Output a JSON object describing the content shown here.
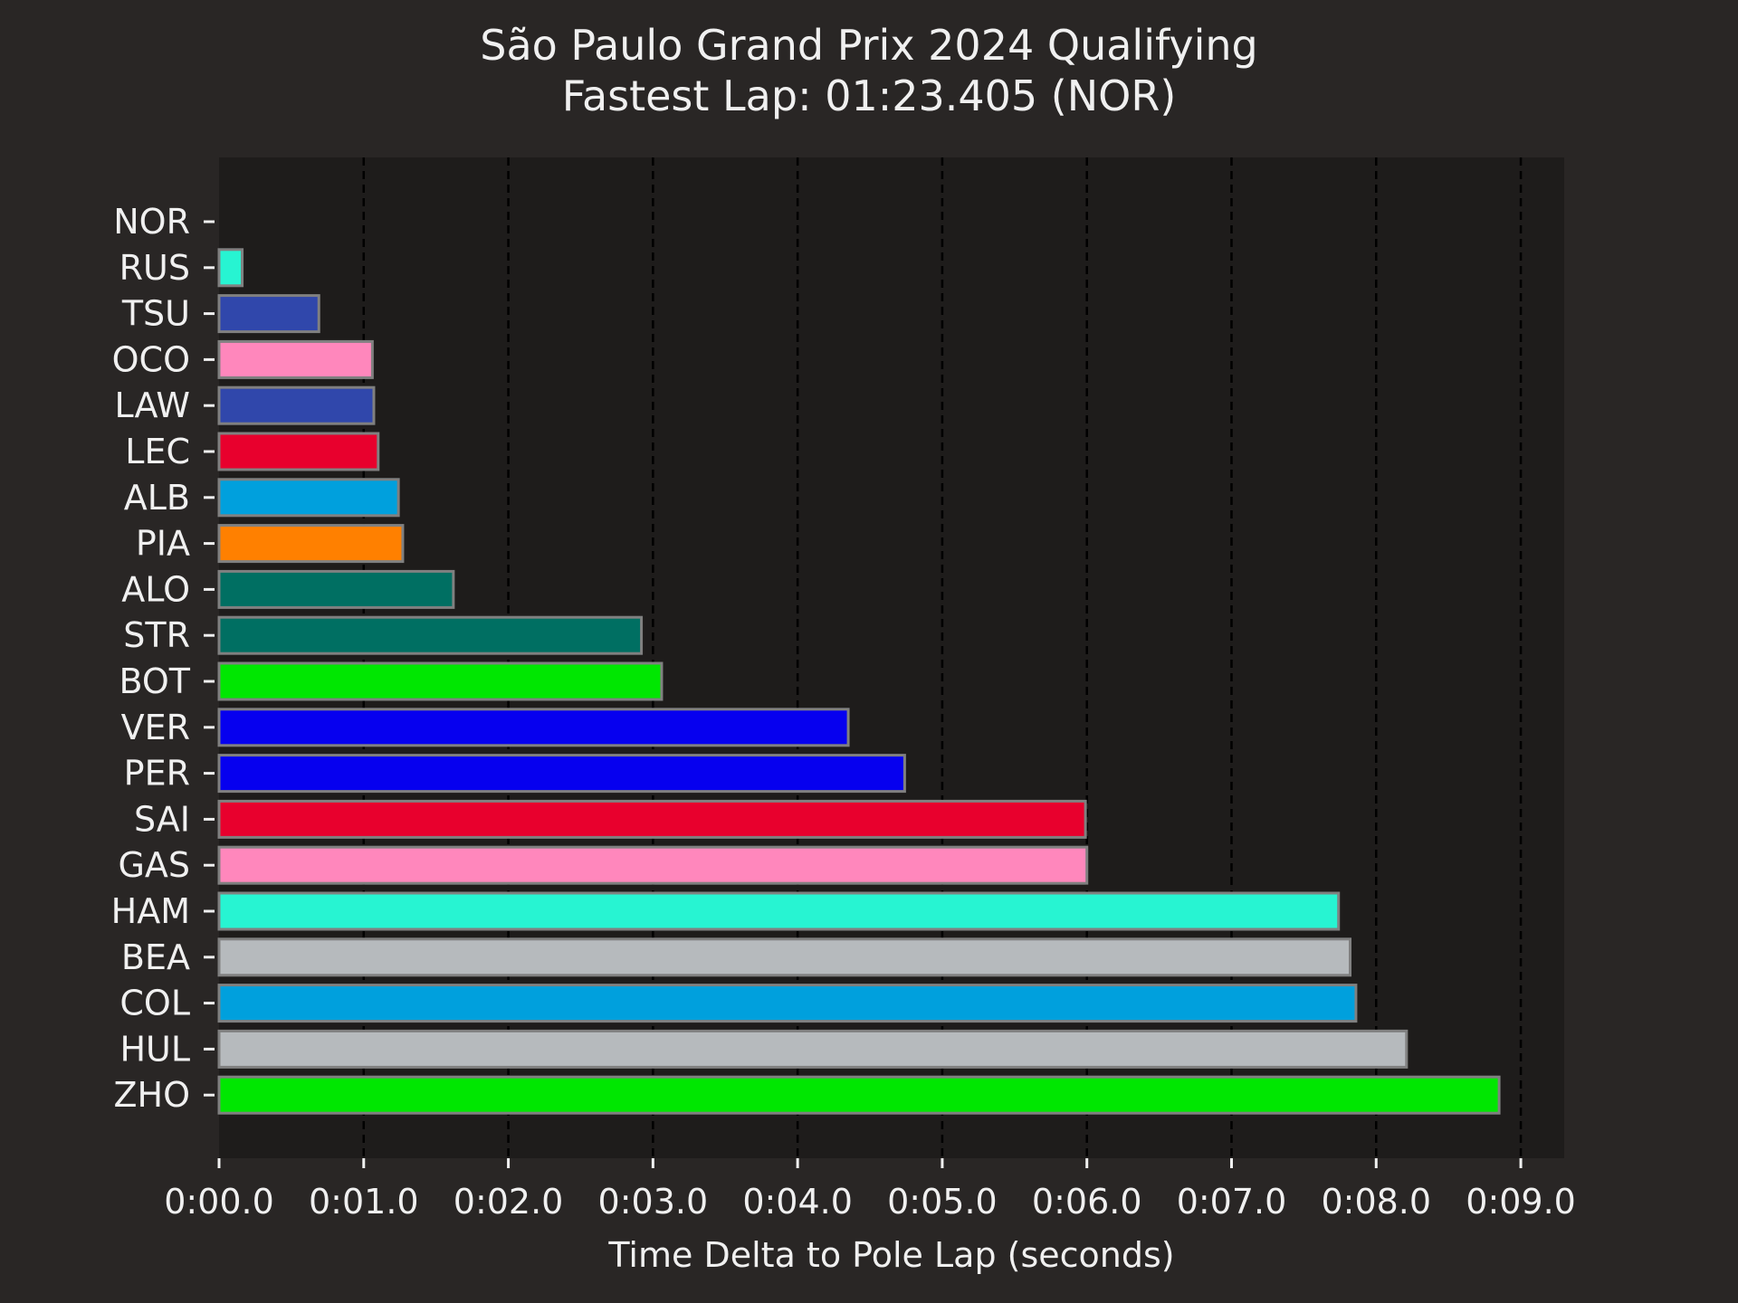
{
  "chart_data": {
    "type": "bar",
    "orientation": "horizontal",
    "title": "São Paulo Grand Prix 2024 Qualifying",
    "subtitle": "Fastest Lap: 01:23.405 (NOR)",
    "xlabel": "Time Delta to Pole Lap (seconds)",
    "ylabel": "",
    "xlim": [
      0,
      9.3
    ],
    "xticks": [
      0,
      1,
      2,
      3,
      4,
      5,
      6,
      7,
      8,
      9
    ],
    "xtick_labels": [
      "0:00.0",
      "0:01.0",
      "0:02.0",
      "0:03.0",
      "0:04.0",
      "0:05.0",
      "0:06.0",
      "0:07.0",
      "0:08.0",
      "0:09.0"
    ],
    "grid": "x dashed",
    "categories": [
      "NOR",
      "RUS",
      "TSU",
      "OCO",
      "LAW",
      "LEC",
      "ALB",
      "PIA",
      "ALO",
      "STR",
      "BOT",
      "VER",
      "PER",
      "SAI",
      "GAS",
      "HAM",
      "BEA",
      "COL",
      "HUL",
      "ZHO"
    ],
    "values": [
      0.0,
      0.16,
      0.69,
      1.06,
      1.07,
      1.1,
      1.24,
      1.27,
      1.62,
      2.92,
      3.06,
      4.35,
      4.74,
      5.99,
      6.0,
      7.74,
      7.82,
      7.86,
      8.21,
      8.85
    ],
    "colors": [
      "#ff8000",
      "#27f4d2",
      "#3047ab",
      "#ff87bc",
      "#3047ab",
      "#e8002d",
      "#00a0dd",
      "#ff8000",
      "#006f62",
      "#006f62",
      "#00e701",
      "#0600ef",
      "#0600ef",
      "#e8002d",
      "#ff87bc",
      "#27f4d2",
      "#b6babd",
      "#00a0dd",
      "#b6babd",
      "#00e701"
    ],
    "colors_theme": {
      "figure_background": "#292625",
      "plot_background": "#1e1c1b",
      "text": "#f0f0f0",
      "bar_edge": "#808080",
      "grid": "#000000"
    }
  }
}
